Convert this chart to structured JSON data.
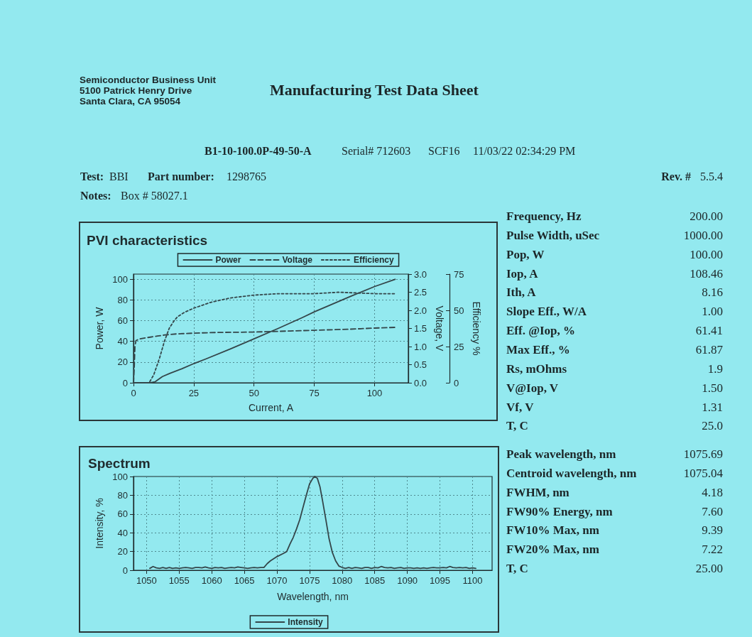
{
  "chart_data": [
    {
      "type": "other",
      "title": "Manufacturing Test Data Sheet",
      "annotations": [
        "Semiconductor Business Unit",
        "5100 Patrick Henry Drive",
        "Santa Clara, CA 95054",
        "B1-10-100.0P-49-50-A",
        "Serial# 712603",
        "SCF16",
        "11/03/22 02:34:29 PM",
        "Test:",
        "BBI",
        "Part number:",
        "1298765",
        "Rev. #",
        "5.5.4",
        "Notes:",
        "Box # 58027.1"
      ]
    },
    {
      "type": "line",
      "title": "PVI characteristics",
      "xlabel": "Current, A",
      "ylabel": "Power, W",
      "y2label": "Voltage, V",
      "y3label": "Efficiency %",
      "xlim": [
        0,
        114
      ],
      "xticks": [
        0,
        25,
        50,
        75,
        100
      ],
      "ylim": [
        0,
        105
      ],
      "yticks": [
        0,
        20,
        40,
        60,
        80,
        100
      ],
      "y2lim": [
        0,
        3
      ],
      "y2ticks": [
        {
          "value": 0,
          "label": "0.0"
        },
        0.5,
        {
          "value": 1,
          "label": "1.0"
        },
        1.5,
        {
          "value": 2,
          "label": "2.0"
        },
        2.5,
        {
          "value": 3,
          "label": "3.0"
        }
      ],
      "y3lim": [
        0,
        75
      ],
      "y3ticks": [
        0,
        25,
        50,
        75
      ],
      "grid": true,
      "legend": "top",
      "marker": "none",
      "series": [
        {
          "name": "Power",
          "color": "#34464a",
          "line_style": "solid",
          "x": [
            0,
            7,
            9,
            12,
            15,
            20,
            25,
            30,
            40,
            50,
            60,
            70,
            75,
            80,
            90,
            100,
            108.5
          ],
          "values": [
            0,
            0,
            1,
            6,
            9,
            13.5,
            18.5,
            23,
            32.5,
            42.5,
            52.5,
            63,
            68.5,
            73.5,
            83.5,
            93,
            100
          ]
        },
        {
          "name": "Voltage",
          "color": "#34464a",
          "line_style": "dashed",
          "axis": "y2",
          "x": [
            0,
            0.3,
            0.6,
            1,
            2,
            4,
            7,
            10,
            13,
            18,
            25,
            35,
            50,
            65,
            75,
            90,
            100,
            108.5
          ],
          "values": [
            0,
            0.4,
            1,
            1.16,
            1.2,
            1.23,
            1.26,
            1.29,
            1.32,
            1.35,
            1.37,
            1.39,
            1.4,
            1.43,
            1.45,
            1.48,
            1.51,
            1.53
          ]
        },
        {
          "name": "Efficiency",
          "color": "#34464a",
          "line_style": "dotted",
          "axis": "y3",
          "x": [
            0,
            6.5,
            8.4,
            10.8,
            12.8,
            14.8,
            16.5,
            18.2,
            21,
            25,
            32,
            40,
            50,
            60,
            75,
            85,
            100,
            108.5
          ],
          "values": [
            0,
            0,
            5.5,
            17,
            28.5,
            37.5,
            42,
            45.5,
            48.5,
            51.5,
            55.5,
            58.5,
            60.5,
            61.5,
            61.5,
            62.5,
            61.5,
            61.5
          ]
        }
      ]
    },
    {
      "type": "other",
      "annotations": [
        "Frequency, Hz",
        "200.00",
        "Pulse Width, uSec",
        "1000.00",
        "Pop, W",
        "100.00",
        "Iop, A",
        "108.46",
        "Ith, A",
        "8.16",
        "Slope Eff., W/A",
        "1.00",
        "Eff. @Iop, %",
        "61.41",
        "Max Eff., %",
        "61.87",
        "Rs, mOhms",
        "1.9",
        "V@Iop, V",
        "1.50",
        "Vf, V",
        "1.31",
        "T, C",
        "25.0"
      ]
    },
    {
      "type": "line",
      "title": "Spectrum",
      "xlabel": "Wavelength, nm",
      "ylabel": "Intensity, %",
      "xlim": [
        1048,
        1103
      ],
      "xticks": [
        1050,
        1055,
        1060,
        1065,
        1070,
        1075,
        1080,
        1085,
        1090,
        1095,
        1100
      ],
      "ylim": [
        0,
        100
      ],
      "yticks": [
        0,
        20,
        40,
        60,
        80,
        100
      ],
      "grid": true,
      "legend": "bottom",
      "marker": "none",
      "line_style": "solid",
      "series": [
        {
          "name": "Intensity",
          "color": "#34464a",
          "x": [
            1050.5,
            1051,
            1051.5,
            1052,
            1052.5,
            1053,
            1053.5,
            1054,
            1054.5,
            1055,
            1055.5,
            1056,
            1056.5,
            1057,
            1057.5,
            1058,
            1058.5,
            1059,
            1059.5,
            1060,
            1060.5,
            1061,
            1061.5,
            1062,
            1062.5,
            1063,
            1063.5,
            1064,
            1064.5,
            1065,
            1065.5,
            1066,
            1066.5,
            1067,
            1067.5,
            1068,
            1068.5,
            1069,
            1070,
            1071,
            1071.5,
            1072,
            1072.5,
            1073,
            1073.5,
            1074,
            1074.5,
            1075,
            1075.5,
            1075.8,
            1076.2,
            1076.6,
            1077,
            1077.5,
            1078,
            1078.5,
            1079,
            1079.5,
            1080,
            1080.5,
            1081,
            1081.5,
            1082,
            1082.5,
            1083,
            1083.5,
            1084,
            1084.5,
            1085,
            1085.5,
            1086,
            1086.5,
            1087,
            1087.5,
            1088,
            1088.5,
            1089,
            1089.5,
            1090,
            1090.5,
            1091,
            1091.5,
            1092,
            1092.5,
            1093,
            1093.5,
            1094,
            1094.5,
            1095,
            1095.5,
            1096,
            1096.5,
            1097,
            1097.5,
            1098,
            1098.5,
            1099,
            1099.5,
            1100,
            1100.5
          ],
          "values": [
            2,
            4,
            2.5,
            2,
            3,
            2,
            3,
            2,
            2.5,
            2,
            2.5,
            3,
            2.5,
            2,
            3,
            3,
            2.5,
            3.5,
            2.5,
            2,
            3,
            2.5,
            3,
            2,
            2.5,
            3,
            2.5,
            3.5,
            3,
            2.5,
            2,
            2.5,
            3,
            2.5,
            3,
            3,
            7,
            10,
            14.5,
            18,
            20,
            28,
            35,
            44,
            54,
            67,
            80,
            92,
            98,
            100,
            98,
            89,
            74,
            54,
            33.5,
            19,
            10,
            4.5,
            3,
            2,
            3,
            2,
            3,
            2.5,
            2,
            3,
            3,
            2,
            3,
            2.5,
            4,
            3,
            2.5,
            3,
            2,
            2.5,
            3,
            2,
            2.5,
            2.5,
            2,
            2.5,
            2,
            2.5,
            2,
            2.5,
            3,
            2.5,
            2.5,
            3,
            2.5,
            4,
            3,
            2.5,
            3,
            2.5,
            3,
            2,
            2.5,
            2
          ]
        }
      ]
    },
    {
      "type": "other",
      "annotations": [
        "Peak wavelength, nm",
        "1075.69",
        "Centroid wavelength, nm",
        "1075.04",
        "FWHM, nm",
        "4.18",
        "FW90% Energy, nm",
        "7.60",
        "FW10% Max, nm",
        "9.39",
        "FW20% Max, nm",
        "7.22",
        "T, C",
        "25.00"
      ]
    }
  ]
}
